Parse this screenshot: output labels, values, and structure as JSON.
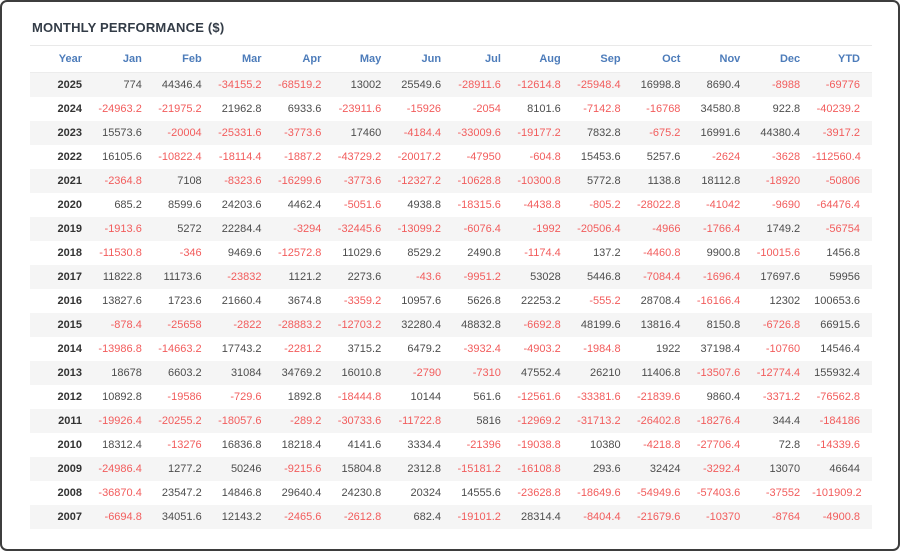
{
  "title": "MONTHLY PERFORMANCE ($)",
  "colors": {
    "header_text": "#4d7cba",
    "positive_value": "#4d4d4d",
    "negative_value": "#f25c5c",
    "row_stripe": "#f5f5f5",
    "title_text": "#333c47"
  },
  "chart_data": {
    "type": "table",
    "title": "MONTHLY PERFORMANCE ($)",
    "columns": [
      "Year",
      "Jan",
      "Feb",
      "Mar",
      "Apr",
      "May",
      "Jun",
      "Jul",
      "Aug",
      "Sep",
      "Oct",
      "Nov",
      "Dec",
      "YTD"
    ],
    "rows": [
      {
        "year": "2025",
        "values": [
          774,
          44346.4,
          -34155.2,
          -68519.2,
          13002,
          25549.6,
          -28911.6,
          -12614.8,
          -25948.4,
          16998.8,
          8690.4,
          -8988,
          -69776
        ]
      },
      {
        "year": "2024",
        "values": [
          -24963.2,
          -21975.2,
          21962.8,
          6933.6,
          -23911.6,
          -15926,
          -2054,
          8101.6,
          -7142.8,
          -16768,
          34580.8,
          922.8,
          -40239.2
        ]
      },
      {
        "year": "2023",
        "values": [
          15573.6,
          -20004,
          -25331.6,
          -3773.6,
          17460,
          -4184.4,
          -33009.6,
          -19177.2,
          7832.8,
          -675.2,
          16991.6,
          44380.4,
          -3917.2
        ]
      },
      {
        "year": "2022",
        "values": [
          16105.6,
          -10822.4,
          -18114.4,
          -1887.2,
          -43729.2,
          -20017.2,
          -47950,
          -604.8,
          15453.6,
          5257.6,
          -2624,
          -3628,
          -112560.4
        ]
      },
      {
        "year": "2021",
        "values": [
          -2364.8,
          7108,
          -8323.6,
          -16299.6,
          -3773.6,
          -12327.2,
          -10628.8,
          -10300.8,
          5772.8,
          1138.8,
          18112.8,
          -18920,
          -50806
        ]
      },
      {
        "year": "2020",
        "values": [
          685.2,
          8599.6,
          24203.6,
          4462.4,
          -5051.6,
          4938.8,
          -18315.6,
          -4438.8,
          -805.2,
          -28022.8,
          -41042,
          -9690,
          -64476.4
        ]
      },
      {
        "year": "2019",
        "values": [
          -1913.6,
          5272,
          22284.4,
          -3294,
          -32445.6,
          -13099.2,
          -6076.4,
          -1992,
          -20506.4,
          -4966,
          -1766.4,
          1749.2,
          -56754
        ]
      },
      {
        "year": "2018",
        "values": [
          -11530.8,
          -346,
          9469.6,
          -12572.8,
          11029.6,
          8529.2,
          2490.8,
          -1174.4,
          137.2,
          -4460.8,
          9900.8,
          -10015.6,
          1456.8
        ]
      },
      {
        "year": "2017",
        "values": [
          11822.8,
          11173.6,
          -23832,
          1121.2,
          2273.6,
          -43.6,
          -9951.2,
          53028,
          5446.8,
          -7084.4,
          -1696.4,
          17697.6,
          59956
        ]
      },
      {
        "year": "2016",
        "values": [
          13827.6,
          1723.6,
          21660.4,
          3674.8,
          -3359.2,
          10957.6,
          5626.8,
          22253.2,
          -555.2,
          28708.4,
          -16166.4,
          12302,
          100653.6
        ]
      },
      {
        "year": "2015",
        "values": [
          -878.4,
          -25658,
          -2822,
          -28883.2,
          -12703.2,
          32280.4,
          48832.8,
          -6692.8,
          48199.6,
          13816.4,
          8150.8,
          -6726.8,
          66915.6
        ]
      },
      {
        "year": "2014",
        "values": [
          -13986.8,
          -14663.2,
          17743.2,
          -2281.2,
          3715.2,
          6479.2,
          -3932.4,
          -4903.2,
          -1984.8,
          1922,
          37198.4,
          -10760,
          14546.4
        ]
      },
      {
        "year": "2013",
        "values": [
          18678,
          6603.2,
          31084,
          34769.2,
          16010.8,
          -2790,
          -7310,
          47552.4,
          26210,
          11406.8,
          -13507.6,
          -12774.4,
          155932.4
        ]
      },
      {
        "year": "2012",
        "values": [
          10892.8,
          -19586,
          -729.6,
          1892.8,
          -18444.8,
          10144,
          561.6,
          -12561.6,
          -33381.6,
          -21839.6,
          9860.4,
          -3371.2,
          -76562.8
        ]
      },
      {
        "year": "2011",
        "values": [
          -19926.4,
          -20255.2,
          -18057.6,
          -289.2,
          -30733.6,
          -11722.8,
          5816,
          -12969.2,
          -31713.2,
          -26402.8,
          -18276.4,
          344.4,
          -184186
        ]
      },
      {
        "year": "2010",
        "values": [
          18312.4,
          -13276,
          16836.8,
          18218.4,
          4141.6,
          3334.4,
          -21396,
          -19038.8,
          10380,
          -4218.8,
          -27706.4,
          72.8,
          -14339.6
        ]
      },
      {
        "year": "2009",
        "values": [
          -24986.4,
          1277.2,
          50246,
          -9215.6,
          15804.8,
          2312.8,
          -15181.2,
          -16108.8,
          293.6,
          32424,
          -3292.4,
          13070,
          46644
        ]
      },
      {
        "year": "2008",
        "values": [
          -36870.4,
          23547.2,
          14846.8,
          29640.4,
          24230.8,
          20324,
          14555.6,
          -23628.8,
          -18649.6,
          -54949.6,
          -57403.6,
          -37552,
          -101909.2
        ]
      },
      {
        "year": "2007",
        "values": [
          -6694.8,
          34051.6,
          12143.2,
          -2465.6,
          -2612.8,
          682.4,
          -19101.2,
          28314.4,
          -8404.4,
          -21679.6,
          -10370,
          -8764,
          -4900.8
        ]
      }
    ]
  }
}
